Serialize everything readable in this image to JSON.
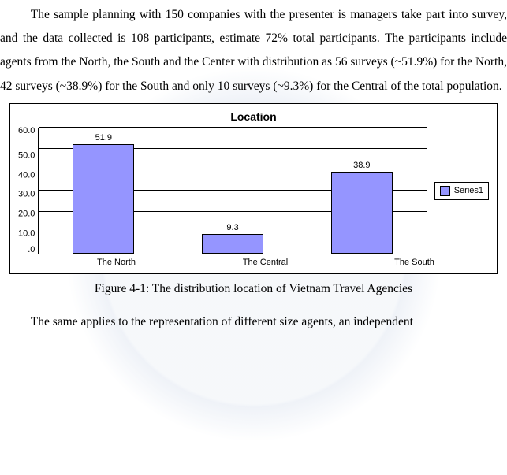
{
  "paragraphs": {
    "intro": "The sample planning with 150 companies with the presenter is managers take part into survey, and the data collected is 108 participants, estimate 72% total participants. The participants include agents from the North, the South and the Center with distribution as 56 surveys (~51.9%) for the North, 42 surveys (~38.9%) for the South and only 10 surveys (~9.3%) for the Central of the total population.",
    "trailing": "The same applies to the representation of different size agents, an independent"
  },
  "chart": {
    "type": "bar",
    "title": "Location",
    "categories": [
      "The North",
      "The Central",
      "The South"
    ],
    "values": [
      51.9,
      9.3,
      38.9
    ],
    "value_labels": [
      "51.9",
      "9.3",
      "38.9"
    ],
    "bar_color": "#9595ff",
    "bar_border_color": "#000000",
    "background_color": "#ffffff",
    "grid_color": "#000000",
    "ylim": [
      0,
      60
    ],
    "ytick_step": 10,
    "yticks": [
      "60.0",
      "50.0",
      "40.0",
      "30.0",
      "20.0",
      "10.0",
      ".0"
    ],
    "legend_label": "Series1",
    "title_fontsize": 14,
    "axis_fontsize": 11,
    "font_family": "Arial"
  },
  "figure_caption": "Figure 4-1: The distribution location of Vietnam Travel Agencies"
}
